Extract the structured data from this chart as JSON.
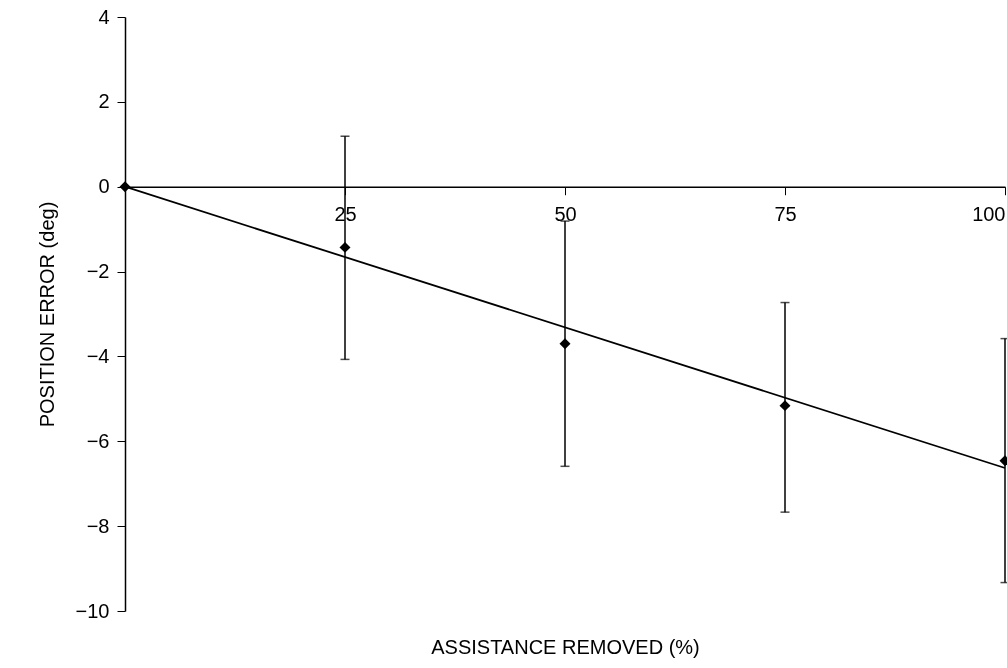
{
  "chart_data": {
    "type": "scatter",
    "xlabel": "ASSISTANCE REMOVED (%)",
    "ylabel": "POSITION ERROR (deg)",
    "xlim": [
      0,
      100
    ],
    "xticks": [
      25,
      50,
      75,
      100
    ],
    "ylim": [
      -10,
      4
    ],
    "yticks": [
      -10,
      -8,
      -6,
      -4,
      -2,
      0,
      2,
      4
    ],
    "grid": false,
    "series": [
      {
        "type": "scatter",
        "color": "#000000",
        "marker": "diamond",
        "x": [
          0,
          25,
          50,
          75,
          100
        ],
        "values": [
          0,
          -1.43,
          -3.7,
          -5.16,
          -6.46
        ],
        "errors": [
          null,
          [
            -4.07,
            1.19
          ],
          [
            -6.59,
            -0.81
          ],
          [
            -7.67,
            -2.73
          ],
          [
            -9.33,
            -3.58
          ]
        ]
      },
      {
        "type": "line",
        "color": "#000000",
        "marker": "none",
        "line_style": "solid",
        "x": [
          0,
          100
        ],
        "values": [
          0,
          -6.63
        ]
      }
    ]
  }
}
